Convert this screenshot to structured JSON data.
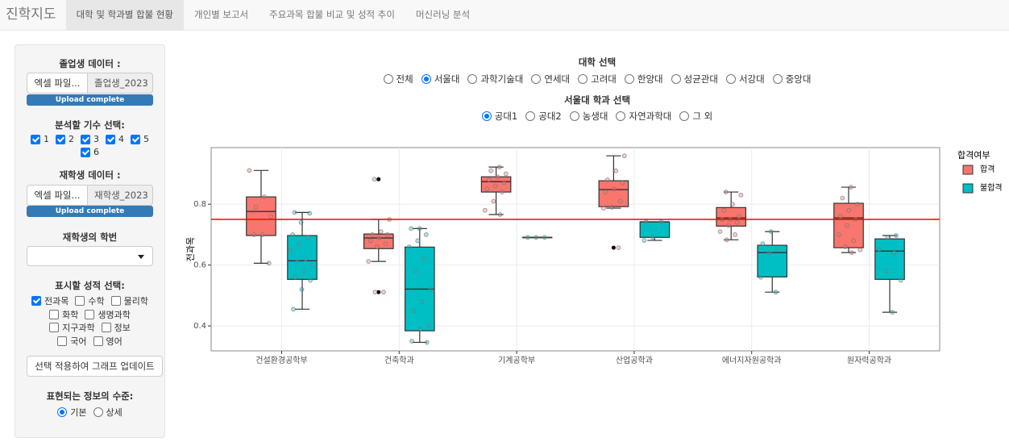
{
  "nav": {
    "brand": "진학지도",
    "tabs": [
      "대학 및 학과별 합불 현황",
      "개인별 보고서",
      "주요과목 합불 비교 및 성적 추이",
      "머신러닝 분석"
    ],
    "active": 0
  },
  "sidebar": {
    "grad_label": "졸업생 데이터 :",
    "grad_button": "엑셀 파일...",
    "grad_file": "졸업생_2023",
    "grad_status": "Upload complete",
    "cohort_label": "분석할 기수 선택:",
    "cohorts": [
      "1",
      "2",
      "3",
      "4",
      "5",
      "6"
    ],
    "cohorts_checked": [
      true,
      true,
      true,
      true,
      true,
      true
    ],
    "current_label": "재학생 데이터 :",
    "current_button": "엑셀 파일...",
    "current_file": "재학생_2023",
    "current_status": "Upload complete",
    "student_id_label": "재학생의 학번",
    "subjects_label": "표시할 성적 선택:",
    "subjects": [
      "전과목",
      "수학",
      "물리학",
      "화학",
      "생명과학",
      "지구과학",
      "정보",
      "국어",
      "영어"
    ],
    "subjects_checked": [
      true,
      false,
      false,
      false,
      false,
      false,
      false,
      false,
      false
    ],
    "apply_button": "선택 적용하여 그래프 업데이트",
    "level_label": "표현되는 정보의 수준:",
    "levels": [
      "기본",
      "상세"
    ],
    "level_selected": 0
  },
  "filters": {
    "univ_label": "대학 선택",
    "univs": [
      "전체",
      "서울대",
      "과학기술대",
      "연세대",
      "고려대",
      "한양대",
      "성균관대",
      "서강대",
      "중앙대"
    ],
    "univ_selected": 1,
    "dept_label": "서울대 학과 선택",
    "depts": [
      "공대1",
      "공대2",
      "농생대",
      "자연과학대",
      "그 외"
    ],
    "dept_selected": 0
  },
  "chart_data": {
    "type": "boxplot",
    "y_label": "전과목",
    "categories": [
      "건설환경공학부",
      "건축학과",
      "기계공학부",
      "산업공학과",
      "에너지자원공학과",
      "원자력공학과"
    ],
    "ylim": [
      0.318,
      0.986
    ],
    "yticks": [
      0.4,
      0.6,
      0.8
    ],
    "grid": true,
    "reference_line": {
      "value": 0.75,
      "color": "#ff0000"
    },
    "legend_title": "합격여부",
    "legend_position": "right",
    "series": [
      {
        "name": "합격",
        "color": "#F8766D",
        "boxes": [
          {
            "min": 0.606,
            "q1": 0.697,
            "median": 0.776,
            "q3": 0.824,
            "max": 0.911,
            "outliers": [],
            "points": [
              0.911,
              0.824,
              0.79,
              0.76,
              0.7,
              0.7,
              0.606
            ]
          },
          {
            "min": 0.612,
            "q1": 0.654,
            "median": 0.689,
            "q3": 0.702,
            "max": 0.75,
            "outliers": [
              0.882,
              0.511
            ],
            "points": [
              0.882,
              0.75,
              0.71,
              0.7,
              0.7,
              0.69,
              0.68,
              0.67,
              0.66,
              0.612,
              0.511,
              0.511
            ]
          },
          {
            "min": 0.766,
            "q1": 0.84,
            "median": 0.874,
            "q3": 0.89,
            "max": 0.922,
            "outliers": [],
            "points": [
              0.922,
              0.91,
              0.9,
              0.89,
              0.88,
              0.87,
              0.86,
              0.85,
              0.84,
              0.81,
              0.78,
              0.766
            ]
          },
          {
            "min": 0.787,
            "q1": 0.792,
            "median": 0.848,
            "q3": 0.877,
            "max": 0.959,
            "outliers": [
              0.657
            ],
            "points": [
              0.959,
              0.91,
              0.88,
              0.87,
              0.85,
              0.84,
              0.81,
              0.79,
              0.787,
              0.657
            ]
          },
          {
            "min": 0.683,
            "q1": 0.728,
            "median": 0.755,
            "q3": 0.789,
            "max": 0.84,
            "outliers": [],
            "points": [
              0.84,
              0.83,
              0.8,
              0.78,
              0.76,
              0.75,
              0.75,
              0.74,
              0.73,
              0.71,
              0.7,
              0.683
            ]
          },
          {
            "min": 0.641,
            "q1": 0.657,
            "median": 0.755,
            "q3": 0.803,
            "max": 0.856,
            "outliers": [],
            "points": [
              0.856,
              0.82,
              0.8,
              0.78,
              0.76,
              0.75,
              0.73,
              0.7,
              0.68,
              0.66,
              0.65,
              0.641
            ]
          }
        ]
      },
      {
        "name": "불합격",
        "color": "#00BFC4",
        "boxes": [
          {
            "min": 0.455,
            "q1": 0.553,
            "median": 0.614,
            "q3": 0.697,
            "max": 0.773,
            "outliers": [],
            "points": [
              0.773,
              0.77,
              0.74,
              0.7,
              0.69,
              0.67,
              0.65,
              0.62,
              0.61,
              0.6,
              0.58,
              0.56,
              0.55,
              0.52,
              0.455
            ]
          },
          {
            "min": 0.346,
            "q1": 0.384,
            "median": 0.521,
            "q3": 0.659,
            "max": 0.72,
            "outliers": [],
            "points": [
              0.72,
              0.72,
              0.7,
              0.68,
              0.66,
              0.62,
              0.58,
              0.52,
              0.48,
              0.45,
              0.4,
              0.39,
              0.35,
              0.346
            ]
          },
          {
            "min": 0.691,
            "q1": 0.691,
            "median": 0.691,
            "q3": 0.691,
            "max": 0.691,
            "outliers": [],
            "points": [
              0.691,
              0.691,
              0.691
            ]
          },
          {
            "min": 0.681,
            "q1": 0.691,
            "median": 0.742,
            "q3": 0.742,
            "max": 0.742,
            "outliers": [],
            "points": [
              0.742,
              0.742,
              0.691,
              0.681
            ]
          },
          {
            "min": 0.511,
            "q1": 0.561,
            "median": 0.641,
            "q3": 0.665,
            "max": 0.71,
            "outliers": [],
            "points": [
              0.71,
              0.67,
              0.65,
              0.64,
              0.56,
              0.511
            ]
          },
          {
            "min": 0.445,
            "q1": 0.553,
            "median": 0.646,
            "q3": 0.686,
            "max": 0.697,
            "outliers": [],
            "points": [
              0.697,
              0.69,
              0.65,
              0.64,
              0.58,
              0.55,
              0.445
            ]
          }
        ]
      }
    ]
  }
}
